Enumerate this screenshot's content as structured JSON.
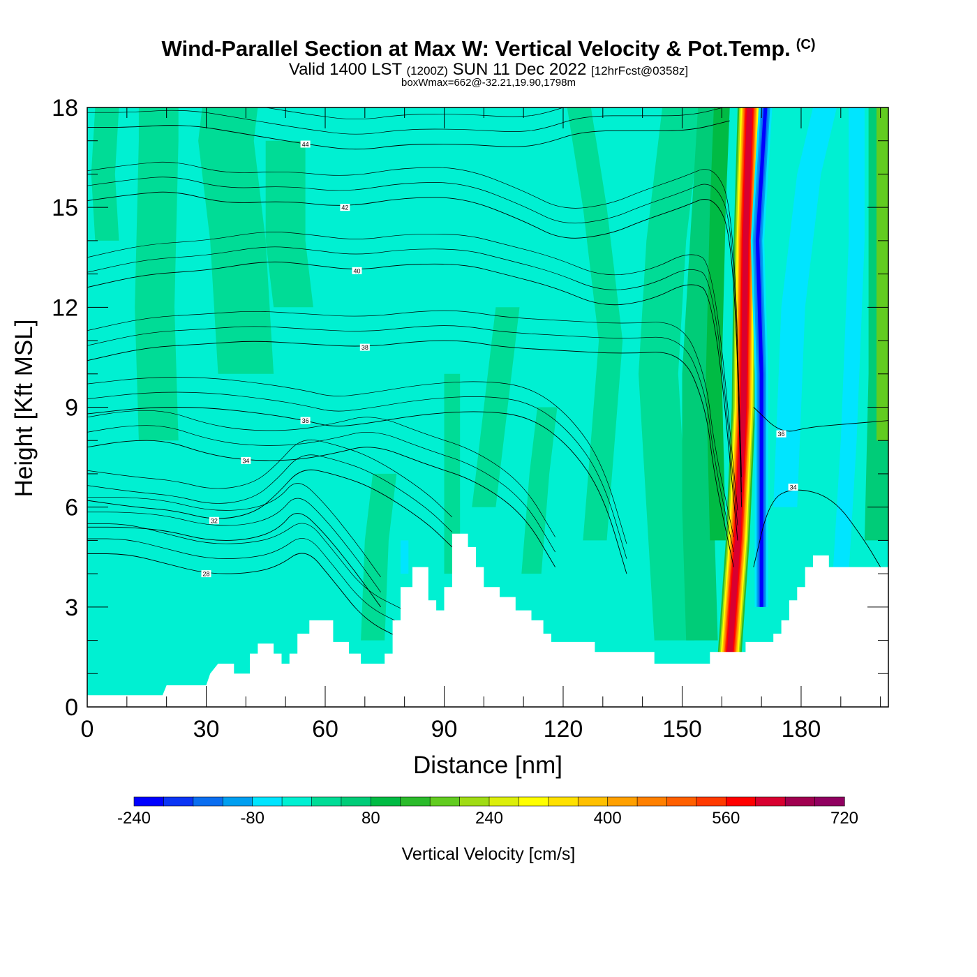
{
  "header": {
    "title": "Wind-Parallel Section at Max W: Vertical Velocity & Pot.Temp.",
    "copyright": "(C)",
    "valid_a": "Valid 1400 LST",
    "valid_b": "(1200Z)",
    "valid_c": "SUN 11 Dec 2022",
    "valid_d": "[12hrFcst@0358z]",
    "box": "boxWmax=662@-32.21,19.90,1798m"
  },
  "chart_data": {
    "type": "heatmap",
    "xlabel": "Distance [nm]",
    "ylabel": "Height [Kft MSL]",
    "xlim": [
      0,
      202
    ],
    "ylim": [
      0,
      18
    ],
    "xticks": [
      0,
      30,
      60,
      90,
      120,
      150,
      180
    ],
    "yticks": [
      0,
      3,
      6,
      9,
      12,
      15,
      18
    ],
    "xtick_labels": [
      "0",
      "30",
      "60",
      "90",
      "120",
      "150",
      "180"
    ],
    "ytick_labels": [
      "0",
      "3",
      "6",
      "9",
      "12",
      "15",
      "18"
    ],
    "colorbar": {
      "title": "Vertical Velocity [cm/s]",
      "min": -240,
      "max": 720,
      "step": 40,
      "labels": [
        "-240",
        "-80",
        "80",
        "240",
        "400",
        "560",
        "720"
      ],
      "label_values": [
        -240,
        -80,
        80,
        240,
        400,
        560,
        720
      ],
      "colors": [
        "#0000ff",
        "#0a35f5",
        "#0a6ef0",
        "#009ff0",
        "#00e5ff",
        "#00f0d2",
        "#00dc96",
        "#00cc78",
        "#00bb44",
        "#2bbb2b",
        "#62cc20",
        "#a0dc14",
        "#dcef0a",
        "#ffff00",
        "#ffe100",
        "#ffc000",
        "#ffa000",
        "#ff8000",
        "#ff6000",
        "#ff3a00",
        "#ff0000",
        "#d80030",
        "#a00050",
        "#900060"
      ]
    },
    "updraft_core": {
      "x_center": [
        162,
        164,
        165.5,
        166,
        167
      ],
      "peak_cm_s": 662
    },
    "downdraft_core": {
      "x_center": [
        170,
        170,
        170,
        169,
        171
      ],
      "min_cm_s": -240
    },
    "theta_contours": [
      {
        "value": 28,
        "label": "28",
        "points": [
          [
            0,
            4.6
          ],
          [
            10,
            4.6
          ],
          [
            20,
            4.3
          ],
          [
            30,
            4.0
          ],
          [
            40,
            4.0
          ],
          [
            48,
            4.2
          ],
          [
            55,
            4.8
          ],
          [
            62,
            3.8
          ],
          [
            70,
            2.6
          ],
          [
            80,
            2.0
          ]
        ]
      },
      {
        "value": 30,
        "label": "",
        "points": [
          [
            0,
            5.4
          ],
          [
            10,
            5.4
          ],
          [
            20,
            5.3
          ],
          [
            30,
            5.0
          ],
          [
            40,
            5.0
          ],
          [
            48,
            5.3
          ],
          [
            53,
            6.0
          ],
          [
            60,
            5.2
          ],
          [
            68,
            4.0
          ],
          [
            74,
            3.0
          ]
        ]
      },
      {
        "value": 32,
        "label": "32",
        "points": [
          [
            0,
            6.2
          ],
          [
            12,
            6.0
          ],
          [
            22,
            5.9
          ],
          [
            32,
            5.6
          ],
          [
            42,
            5.8
          ],
          [
            48,
            6.4
          ],
          [
            54,
            7.2
          ],
          [
            62,
            7.0
          ],
          [
            72,
            6.6
          ],
          [
            85,
            5.6
          ],
          [
            92,
            4.8
          ]
        ]
      },
      {
        "value": 34,
        "label": "34",
        "points": [
          [
            0,
            7.8
          ],
          [
            10,
            8.0
          ],
          [
            20,
            8.0
          ],
          [
            30,
            7.6
          ],
          [
            40,
            7.4
          ],
          [
            52,
            7.4
          ],
          [
            62,
            7.6
          ],
          [
            72,
            7.9
          ],
          [
            85,
            7.3
          ],
          [
            98,
            6.8
          ],
          [
            110,
            5.8
          ],
          [
            118,
            4.2
          ]
        ]
      },
      {
        "value": 36,
        "label": "36",
        "points": [
          [
            0,
            8.8
          ],
          [
            15,
            9.0
          ],
          [
            30,
            9.0
          ],
          [
            45,
            8.8
          ],
          [
            55,
            8.6
          ],
          [
            62,
            8.4
          ],
          [
            70,
            8.5
          ],
          [
            85,
            8.8
          ],
          [
            100,
            8.9
          ],
          [
            112,
            8.7
          ],
          [
            122,
            7.8
          ],
          [
            130,
            6.4
          ],
          [
            136,
            4.0
          ]
        ]
      },
      {
        "value": 38,
        "label": "38",
        "points": [
          [
            0,
            10.4
          ],
          [
            15,
            10.8
          ],
          [
            30,
            10.9
          ],
          [
            42,
            11.0
          ],
          [
            55,
            10.9
          ],
          [
            70,
            10.8
          ],
          [
            85,
            11.0
          ],
          [
            95,
            11.0
          ],
          [
            105,
            10.8
          ],
          [
            120,
            10.7
          ],
          [
            135,
            10.6
          ],
          [
            150,
            10.7
          ],
          [
            156,
            9.0
          ],
          [
            158,
            7.0
          ],
          [
            163,
            4.2
          ]
        ]
      },
      {
        "value": 40,
        "label": "40",
        "points": [
          [
            0,
            12.6
          ],
          [
            15,
            13.0
          ],
          [
            30,
            13.1
          ],
          [
            45,
            13.4
          ],
          [
            55,
            13.3
          ],
          [
            68,
            13.1
          ],
          [
            80,
            13.3
          ],
          [
            95,
            13.3
          ],
          [
            105,
            13.0
          ],
          [
            118,
            12.6
          ],
          [
            130,
            12.0
          ],
          [
            142,
            12.2
          ],
          [
            152,
            12.8
          ],
          [
            158,
            12.4
          ],
          [
            164,
            5.0
          ]
        ]
      },
      {
        "value": 42,
        "label": "42",
        "points": [
          [
            0,
            15.2
          ],
          [
            12,
            15.4
          ],
          [
            22,
            15.5
          ],
          [
            35,
            15.1
          ],
          [
            50,
            15.2
          ],
          [
            65,
            15.0
          ],
          [
            80,
            15.3
          ],
          [
            95,
            15.3
          ],
          [
            110,
            14.6
          ],
          [
            120,
            14.0
          ],
          [
            132,
            14.2
          ],
          [
            140,
            14.6
          ],
          [
            150,
            15.0
          ],
          [
            158,
            15.4
          ],
          [
            163,
            14.0
          ],
          [
            165,
            6.0
          ]
        ]
      },
      {
        "value": 44,
        "label": "44",
        "points": [
          [
            0,
            17.4
          ],
          [
            10,
            17.4
          ],
          [
            25,
            17.5
          ],
          [
            40,
            17.2
          ],
          [
            55,
            16.9
          ],
          [
            68,
            16.7
          ],
          [
            80,
            16.9
          ],
          [
            95,
            16.9
          ],
          [
            108,
            16.8
          ],
          [
            115,
            16.9
          ],
          [
            125,
            17.3
          ],
          [
            140,
            17.3
          ],
          [
            152,
            17.3
          ],
          [
            162,
            17.6
          ]
        ]
      },
      {
        "value": 36,
        "label": "36",
        "points": [
          [
            168,
            9.0
          ],
          [
            175,
            8.2
          ],
          [
            182,
            8.4
          ],
          [
            192,
            8.5
          ],
          [
            202,
            8.6
          ]
        ]
      },
      {
        "value": 34,
        "label": "34",
        "points": [
          [
            168,
            4.2
          ],
          [
            172,
            6.2
          ],
          [
            178,
            6.6
          ],
          [
            188,
            6.3
          ],
          [
            196,
            5.0
          ],
          [
            200,
            4.2
          ]
        ]
      }
    ],
    "terrain_kft": [
      [
        0,
        0.35
      ],
      [
        10,
        0.35
      ],
      [
        19,
        0.35
      ],
      [
        20,
        0.65
      ],
      [
        30,
        0.65
      ],
      [
        31,
        1.0
      ],
      [
        33,
        1.3
      ],
      [
        37,
        1.3
      ],
      [
        37,
        1.0
      ],
      [
        41,
        1.0
      ],
      [
        41,
        1.6
      ],
      [
        43,
        1.6
      ],
      [
        43,
        1.9
      ],
      [
        47,
        1.9
      ],
      [
        47,
        1.6
      ],
      [
        49,
        1.6
      ],
      [
        49,
        1.3
      ],
      [
        51,
        1.3
      ],
      [
        51,
        1.6
      ],
      [
        53,
        1.6
      ],
      [
        53,
        2.2
      ],
      [
        56,
        2.2
      ],
      [
        56,
        2.6
      ],
      [
        62,
        2.6
      ],
      [
        62,
        1.95
      ],
      [
        66,
        1.95
      ],
      [
        66,
        1.6
      ],
      [
        69,
        1.6
      ],
      [
        69,
        1.3
      ],
      [
        75,
        1.3
      ],
      [
        75,
        1.6
      ],
      [
        77,
        1.6
      ],
      [
        77,
        2.6
      ],
      [
        79,
        2.6
      ],
      [
        79,
        3.6
      ],
      [
        82,
        3.6
      ],
      [
        82,
        4.2
      ],
      [
        86,
        4.2
      ],
      [
        86,
        3.2
      ],
      [
        88,
        3.2
      ],
      [
        88,
        2.9
      ],
      [
        90,
        2.9
      ],
      [
        90,
        3.6
      ],
      [
        92,
        3.6
      ],
      [
        92,
        5.2
      ],
      [
        96,
        5.2
      ],
      [
        96,
        4.8
      ],
      [
        98,
        4.8
      ],
      [
        98,
        4.2
      ],
      [
        100,
        4.2
      ],
      [
        100,
        3.6
      ],
      [
        104,
        3.6
      ],
      [
        104,
        3.3
      ],
      [
        108,
        3.3
      ],
      [
        108,
        2.9
      ],
      [
        112,
        2.9
      ],
      [
        112,
        2.6
      ],
      [
        115,
        2.6
      ],
      [
        115,
        2.2
      ],
      [
        117,
        2.2
      ],
      [
        117,
        1.95
      ],
      [
        128,
        1.95
      ],
      [
        128,
        1.65
      ],
      [
        143,
        1.65
      ],
      [
        143,
        1.3
      ],
      [
        157,
        1.3
      ],
      [
        157,
        1.65
      ],
      [
        166,
        1.65
      ],
      [
        166,
        1.95
      ],
      [
        173,
        1.95
      ],
      [
        173,
        2.2
      ],
      [
        175,
        2.2
      ],
      [
        175,
        2.6
      ],
      [
        177,
        2.6
      ],
      [
        177,
        3.2
      ],
      [
        179,
        3.2
      ],
      [
        179,
        3.6
      ],
      [
        181,
        3.6
      ],
      [
        181,
        4.2
      ],
      [
        183,
        4.2
      ],
      [
        183,
        4.55
      ],
      [
        187,
        4.55
      ],
      [
        187,
        4.2
      ],
      [
        202,
        4.2
      ]
    ]
  }
}
